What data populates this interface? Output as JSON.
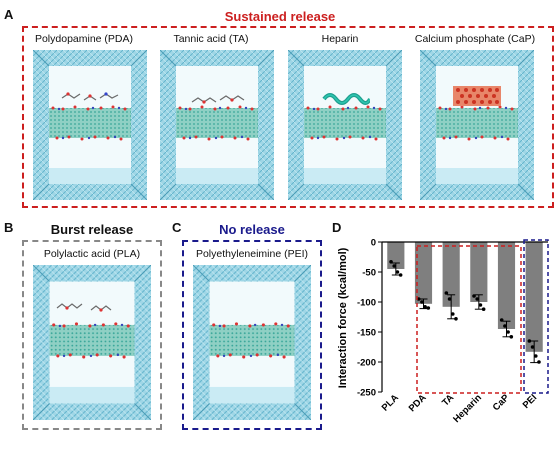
{
  "panels": {
    "A": {
      "letter": "A",
      "title": "Sustained release",
      "labels": [
        "Polydopamine (PDA)",
        "Tannic acid (TA)",
        "Heparin",
        "Calcium phosphate (CaP)"
      ]
    },
    "B": {
      "letter": "B",
      "title": "Burst release",
      "label": "Polylactic acid (PLA)"
    },
    "C": {
      "letter": "C",
      "title": "No release",
      "label": "Polyethyleneimine (PEI)"
    },
    "D": {
      "letter": "D"
    }
  },
  "colors": {
    "sustained": "#cc1f1f",
    "burst": "#888888",
    "none": "#1a1a8c",
    "water": "#7cc8dc",
    "bar": "#7f7f7f"
  },
  "chart_data": {
    "type": "bar",
    "ylabel": "Interaction force (kcal/mol)",
    "categories": [
      "PLA",
      "PDA",
      "TA",
      "Heparin",
      "CaP",
      "PEI"
    ],
    "values": [
      -45,
      -103,
      -108,
      -100,
      -145,
      -183
    ],
    "errors": [
      10,
      8,
      20,
      12,
      13,
      18
    ],
    "ylim": [
      -250,
      0
    ],
    "yticks": [
      0,
      -50,
      -100,
      -150,
      -200,
      -250
    ],
    "points": [
      [
        -33,
        -40,
        -50,
        -55
      ],
      [
        -95,
        -100,
        -108,
        -110
      ],
      [
        -85,
        -95,
        -120,
        -128
      ],
      [
        -90,
        -95,
        -105,
        -112
      ],
      [
        -130,
        -140,
        -150,
        -158
      ],
      [
        -165,
        -175,
        -190,
        -200
      ]
    ]
  }
}
